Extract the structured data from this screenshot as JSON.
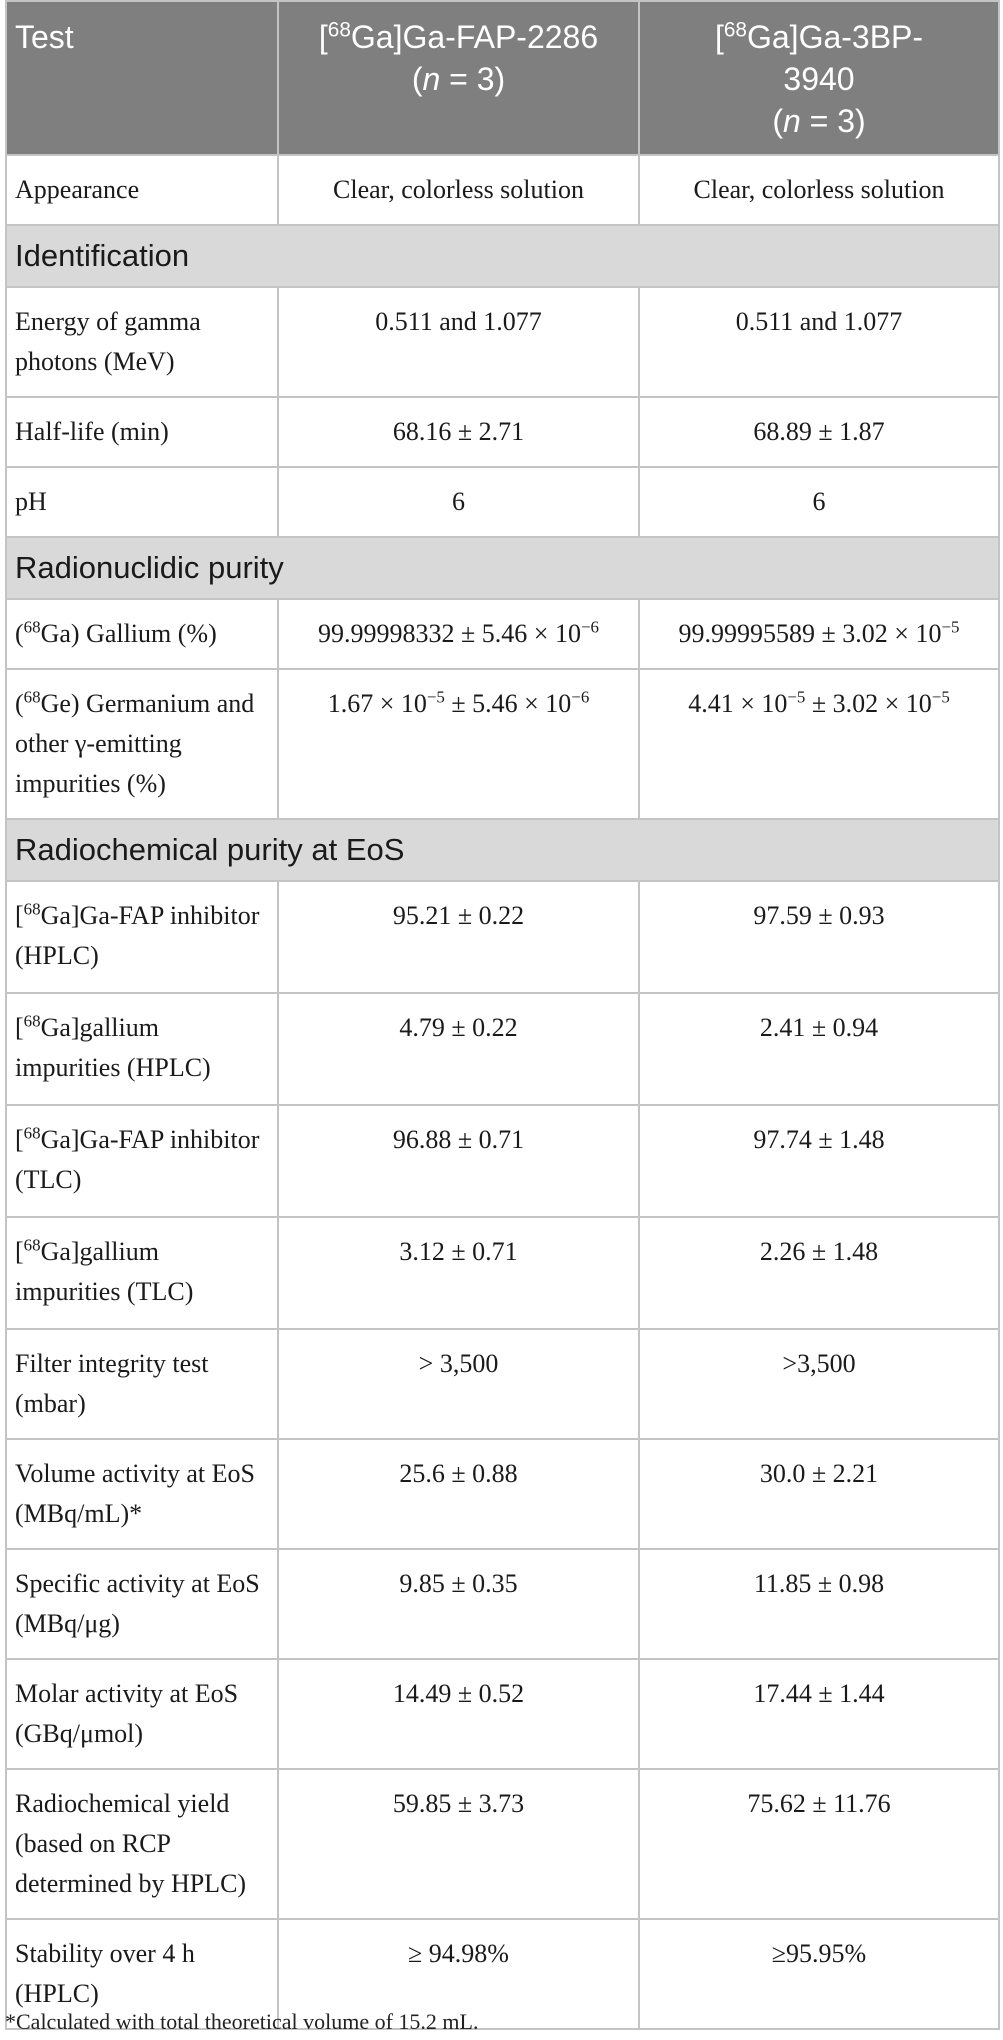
{
  "table": {
    "headers": {
      "test": "Test",
      "col1_sup": "68",
      "col1_name": "Ga]Ga-FAP-2286",
      "col1_n": "(n = 3)",
      "col2_sup": "68",
      "col2_name_a": "Ga]Ga-3BP-",
      "col2_name_b": "3940",
      "col2_n": "(n = 3)"
    },
    "rows": [
      {
        "type": "data",
        "label": "Appearance",
        "v1": "Clear, colorless solution",
        "v2": "Clear, colorless solution"
      },
      {
        "type": "section",
        "label": "Identification"
      },
      {
        "type": "data",
        "label": "Energy of gamma photons (MeV)",
        "v1": "0.511 and 1.077",
        "v2": "0.511 and 1.077"
      },
      {
        "type": "data",
        "label": "Half-life (min)",
        "v1": "68.16 ± 2.71",
        "v2": "68.89 ± 1.87"
      },
      {
        "type": "data",
        "label": "pH",
        "v1": "6",
        "v2": "6"
      },
      {
        "type": "section",
        "label": "Radionuclidic purity"
      },
      {
        "type": "data",
        "label_sup": "68",
        "label_pre": "(",
        "label_post": "Ga) Gallium (%)",
        "v1_base": "99.99998332 ± 5.46 × 10",
        "v1_exp": "−6",
        "v2_base": "99.99995589 ± 3.02 × 10",
        "v2_exp": "−5"
      },
      {
        "type": "data",
        "label_sup": "68",
        "label_pre": "(",
        "label_post": "Ge) Germanium and other γ-emitting impurities (%)",
        "v1_a": "1.67 × 10",
        "v1_exp_a": "−5",
        "v1_b": " ± 5.46 × 10",
        "v1_exp_b": "−6",
        "v2_a": "4.41 × 10",
        "v2_exp_a": "−5",
        "v2_b": " ± 3.02 × 10",
        "v2_exp_b": "−5"
      },
      {
        "type": "section",
        "label": "Radiochemical purity at EoS"
      },
      {
        "type": "data",
        "label_sup": "68",
        "label_pre": "[",
        "label_post": "Ga]Ga-FAP inhibitor (HPLC)",
        "v1": "95.21 ± 0.22",
        "v2": "97.59 ± 0.93"
      },
      {
        "type": "data",
        "label_sup": "68",
        "label_pre": "[",
        "label_post": "Ga]gallium impurities (HPLC)",
        "v1": "4.79 ± 0.22",
        "v2": "2.41 ± 0.94"
      },
      {
        "type": "data",
        "label_sup": "68",
        "label_pre": "[",
        "label_post": "Ga]Ga-FAP inhibitor (TLC)",
        "v1": "96.88 ± 0.71",
        "v2": "97.74 ± 1.48"
      },
      {
        "type": "data",
        "label_sup": "68",
        "label_pre": "[",
        "label_post": "Ga]gallium impurities (TLC)",
        "v1": "3.12 ± 0.71",
        "v2": "2.26 ± 1.48"
      },
      {
        "type": "data",
        "label": "Filter integrity test (mbar)",
        "v1": "> 3,500",
        "v2": ">3,500"
      },
      {
        "type": "data",
        "label": "Volume activity at EoS (MBq/mL)*",
        "v1": "25.6 ± 0.88",
        "v2": "30.0 ± 2.21"
      },
      {
        "type": "data",
        "label": "Specific activity at EoS (MBq/μg)",
        "v1": "9.85 ± 0.35",
        "v2": "11.85 ± 0.98"
      },
      {
        "type": "data",
        "label": "Molar activity at EoS (GBq/μmol)",
        "v1": "14.49 ± 0.52",
        "v2": "17.44 ± 1.44"
      },
      {
        "type": "data",
        "label": "Radiochemical yield (based on RCP determined by HPLC)",
        "v1": "59.85 ± 3.73",
        "v2": "75.62 ± 11.76"
      },
      {
        "type": "data",
        "label": "Stability over 4 h (HPLC)",
        "v1": "≥ 94.98%",
        "v2": "≥95.95%"
      }
    ]
  },
  "footnote": "*Calculated with total theoretical volume of 15.2 mL."
}
